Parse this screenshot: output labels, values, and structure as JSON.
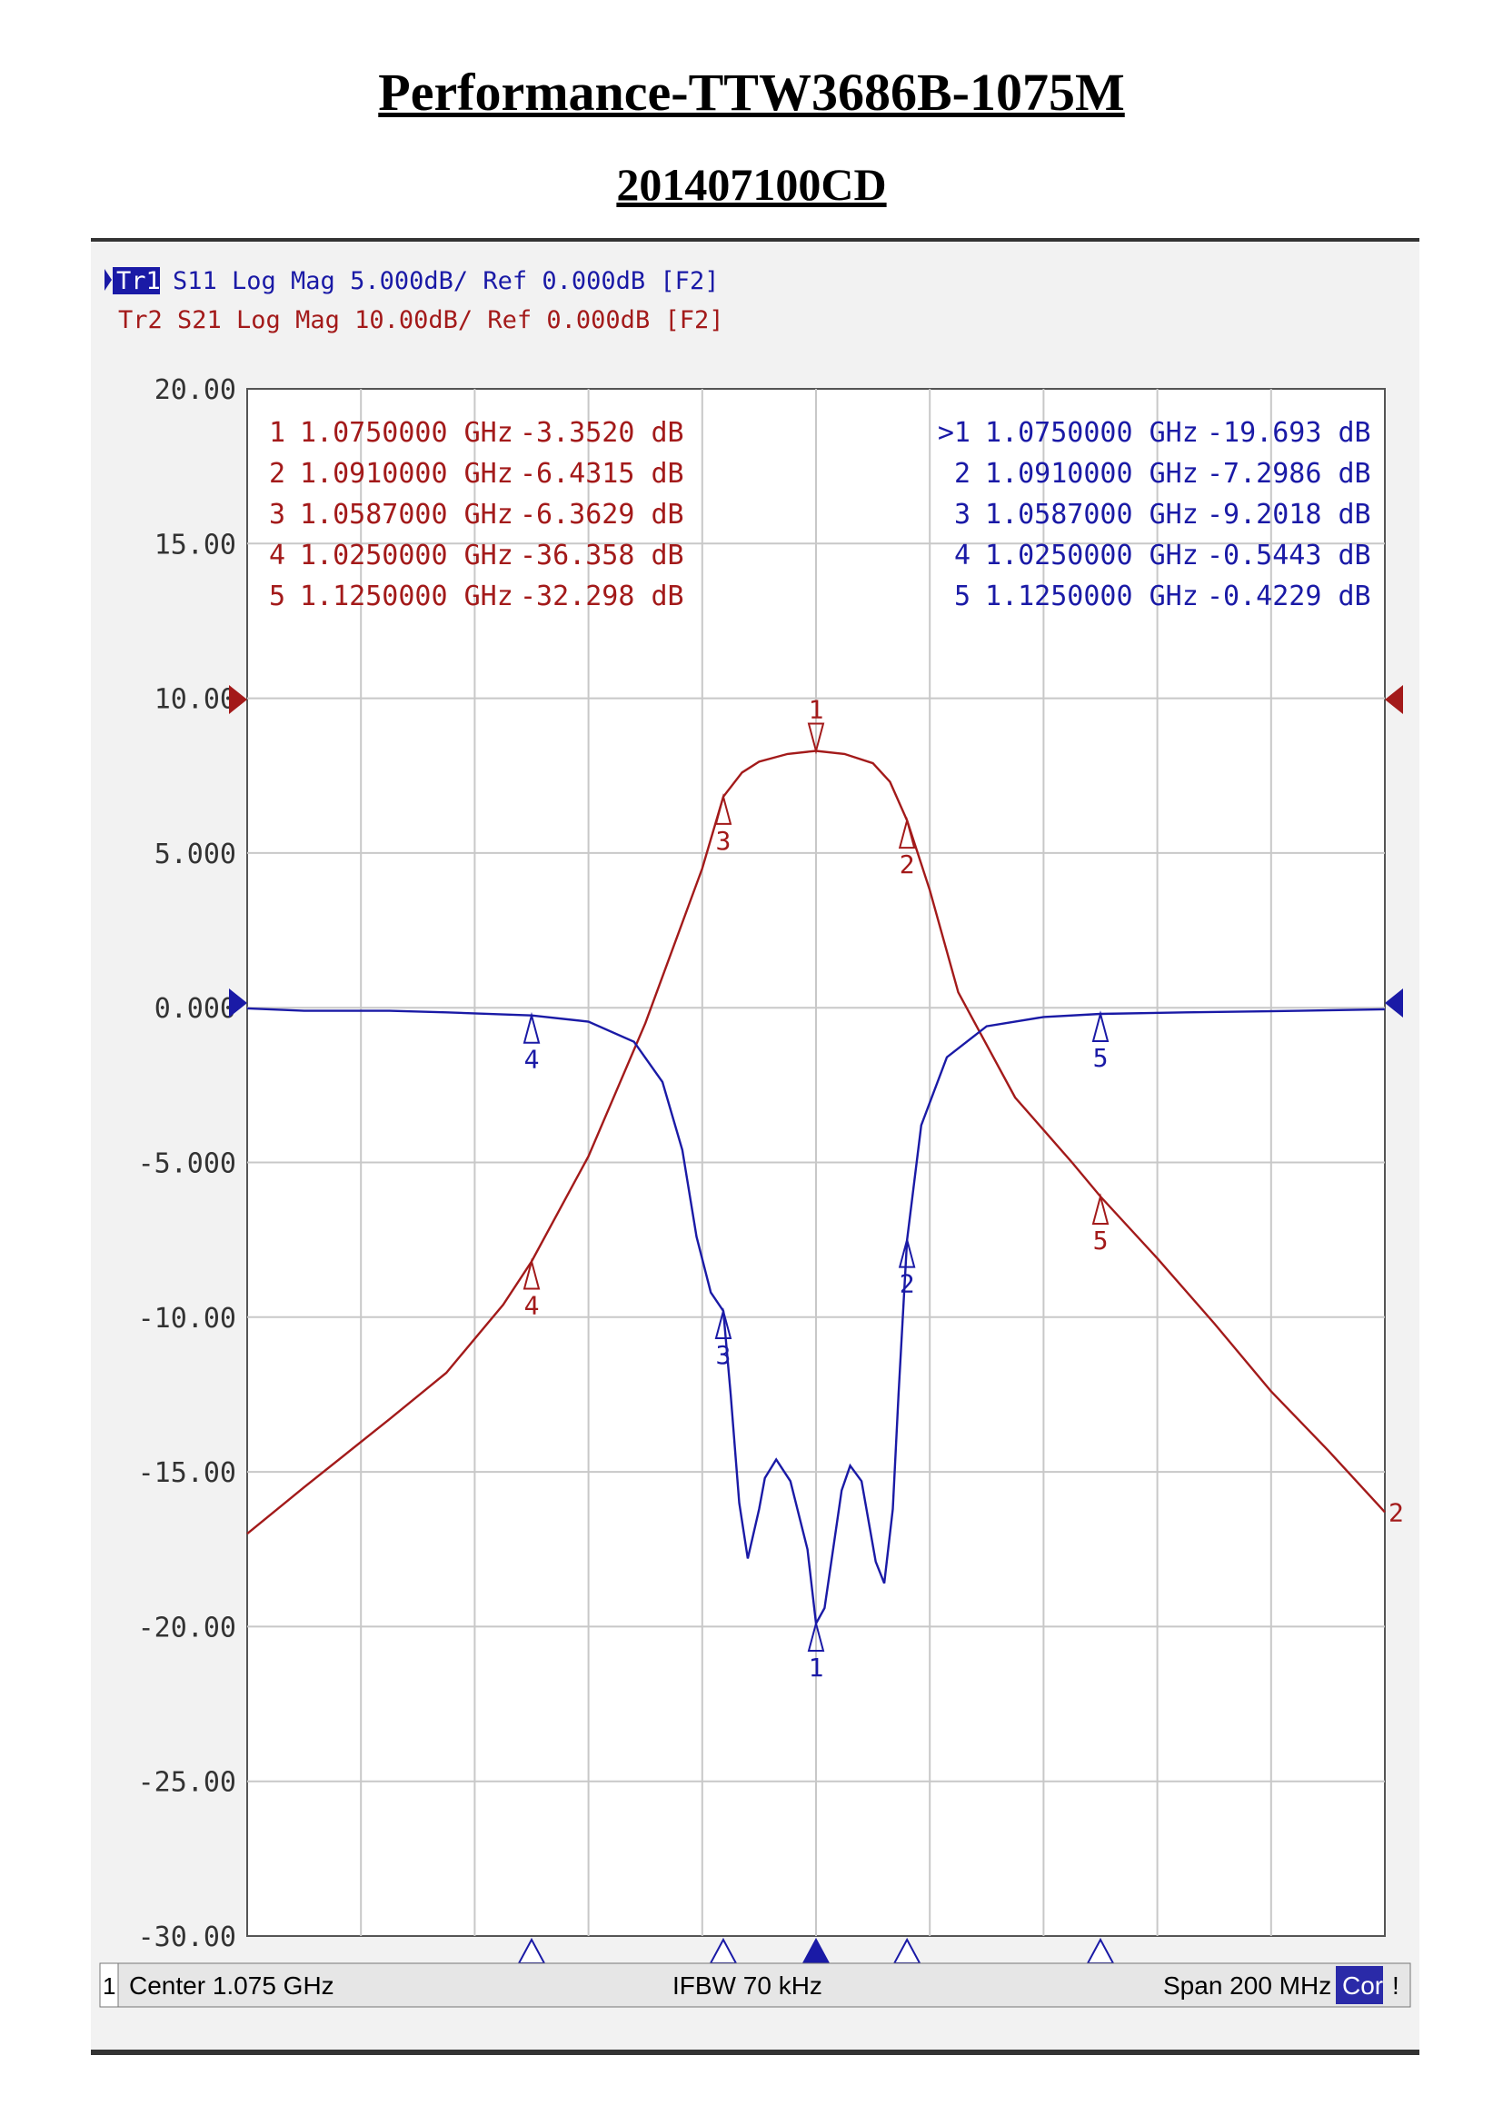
{
  "title": "Performance-TTW3686B-1075M",
  "subtitle": "201407100CD",
  "header": {
    "tr1_label": "Tr1",
    "tr1_text": "S11 Log Mag 5.000dB/ Ref 0.000dB [F2]",
    "tr2_text": "Tr2 S21 Log Mag 10.00dB/ Ref 0.000dB [F2]"
  },
  "status": {
    "channel": "1",
    "center": "Center 1.075 GHz",
    "ifbw": "IFBW 70 kHz",
    "span": "Span 200 MHz",
    "cor": "Cor",
    "excl": "!"
  },
  "colors": {
    "s11": "#1a1aa6",
    "s21": "#a31a1a",
    "grid": "#c8c8c8"
  },
  "chart_data": {
    "type": "line",
    "xlim": [
      0.975,
      1.175
    ],
    "ylim": [
      -30,
      20
    ],
    "yticks": [
      20,
      15,
      10,
      5,
      0,
      -5,
      -10,
      -15,
      -20,
      -25,
      -30
    ],
    "ytick_labels": [
      "20.00",
      "15.00",
      "10.00",
      "5.000",
      "0.000",
      "-5.000",
      "-10.00",
      "-15.00",
      "-20.00",
      "-25.00",
      "-30.00"
    ],
    "series": [
      {
        "name": "S11",
        "x": [
          0.975,
          0.985,
          1.0,
          1.01,
          1.025,
          1.035,
          1.043,
          1.048,
          1.0515,
          1.054,
          1.0565,
          1.0587,
          1.06,
          1.0615,
          1.063,
          1.065,
          1.066,
          1.068,
          1.0705,
          1.0735,
          1.075,
          1.0765,
          1.078,
          1.0795,
          1.081,
          1.083,
          1.0855,
          1.087,
          1.0885,
          1.0895,
          1.091,
          1.0935,
          1.098,
          1.105,
          1.115,
          1.125,
          1.14,
          1.16,
          1.175
        ],
        "y": [
          -0.02,
          -0.1,
          -0.1,
          -0.15,
          -0.25,
          -0.45,
          -1.1,
          -2.4,
          -4.6,
          -7.4,
          -9.2,
          -9.8,
          -12.5,
          -16,
          -17.8,
          -16.2,
          -15.2,
          -14.6,
          -15.3,
          -17.5,
          -19.9,
          -19.4,
          -17.5,
          -15.6,
          -14.8,
          -15.3,
          -17.9,
          -18.6,
          -16.2,
          -12.5,
          -7.5,
          -3.8,
          -1.6,
          -0.6,
          -0.3,
          -0.2,
          -0.15,
          -0.1,
          -0.05
        ]
      },
      {
        "name": "S21",
        "x": [
          0.975,
          0.985,
          1.0,
          1.01,
          1.02,
          1.025,
          1.035,
          1.045,
          1.05,
          1.055,
          1.0587,
          1.062,
          1.065,
          1.07,
          1.075,
          1.08,
          1.085,
          1.088,
          1.091,
          1.095,
          1.1,
          1.11,
          1.12,
          1.125,
          1.135,
          1.145,
          1.155,
          1.165,
          1.175
        ],
        "y": [
          -17,
          -15.5,
          -13.3,
          -11.8,
          -9.6,
          -8.2,
          -4.8,
          -0.5,
          2,
          4.5,
          6.82,
          7.6,
          7.95,
          8.2,
          8.3,
          8.2,
          7.9,
          7.3,
          6.05,
          3.8,
          0.5,
          -2.9,
          -5,
          -6.1,
          -8.1,
          -10.2,
          -12.4,
          -14.3,
          -16.3
        ]
      }
    ],
    "markers": {
      "s21": [
        {
          "id": "1",
          "freq": "1.0750000 GHz",
          "value": "-3.3520 dB",
          "x": 1.075,
          "y": 8.3
        },
        {
          "id": "2",
          "freq": "1.0910000 GHz",
          "value": "-6.4315 dB",
          "x": 1.091,
          "y": 6.05
        },
        {
          "id": "3",
          "freq": "1.0587000 GHz",
          "value": "-6.3629 dB",
          "x": 1.0587,
          "y": 6.82
        },
        {
          "id": "4",
          "freq": "1.0250000 GHz",
          "value": "-36.358 dB",
          "x": 1.025,
          "y": -8.2
        },
        {
          "id": "5",
          "freq": "1.1250000 GHz",
          "value": "-32.298 dB",
          "x": 1.125,
          "y": -6.1
        }
      ],
      "s11": [
        {
          "id": ">1",
          "freq": "1.0750000 GHz",
          "value": "-19.693 dB",
          "x": 1.075,
          "y": -19.9
        },
        {
          "id": "2",
          "freq": "1.0910000 GHz",
          "value": "-7.2986 dB",
          "x": 1.091,
          "y": -7.5
        },
        {
          "id": "3",
          "freq": "1.0587000 GHz",
          "value": "-9.2018 dB",
          "x": 1.0587,
          "y": -9.8
        },
        {
          "id": "4",
          "freq": "1.0250000 GHz",
          "value": "-0.5443 dB",
          "x": 1.025,
          "y": -0.25
        },
        {
          "id": "5",
          "freq": "1.1250000 GHz",
          "value": "-0.4229 dB",
          "x": 1.125,
          "y": -0.2
        }
      ]
    },
    "s21_end_label": "2"
  }
}
